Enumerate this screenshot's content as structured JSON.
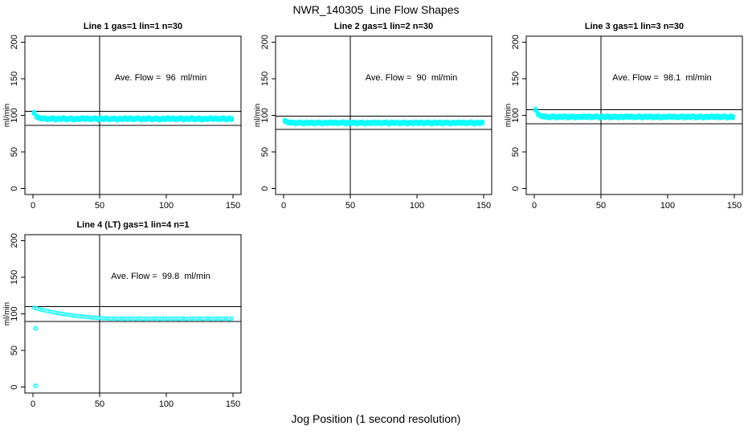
{
  "page": {
    "title": "NWR_140305  Line Flow Shapes",
    "xlabel": "Jog Position (1 second resolution)"
  },
  "colors": {
    "points": "#00FFFF",
    "axis": "#000000",
    "text": "#000000",
    "background": "#FFFFFF"
  },
  "chart_data": [
    {
      "type": "scatter",
      "title": "Line 1 gas=1 lin=1 n=30",
      "annotation": "Ave. Flow =  96  ml/min",
      "ave_flow_ml_min": 96,
      "gas": 1,
      "lin": 1,
      "n": 30,
      "ylabel": "ml/min",
      "xlim": [
        0,
        150
      ],
      "ylim": [
        0,
        200
      ],
      "xticks": [
        0,
        50,
        100,
        150
      ],
      "yticks": [
        0,
        50,
        100,
        150,
        200
      ],
      "vline_x": 50,
      "hlines": [
        105.6,
        86.4
      ],
      "x_start": 1,
      "x_step": 2,
      "y_values": [
        103.4,
        98.0,
        96.4,
        95.8,
        95.9,
        94.7,
        95.4,
        96.1,
        94.4,
        95.6,
        95.0,
        96.2,
        94.6,
        95.3,
        95.8,
        94.3,
        95.5,
        94.8,
        96.0,
        95.1,
        95.9,
        94.7,
        95.4,
        96.1,
        94.4,
        95.6,
        95.0,
        96.2,
        94.6,
        95.3,
        95.8,
        94.3,
        95.5,
        94.8,
        96.0,
        95.1,
        95.9,
        94.7,
        95.4,
        96.1,
        94.4,
        95.6,
        95.0,
        96.2,
        94.6,
        95.3,
        95.8,
        94.3,
        95.5,
        94.8,
        96.0,
        95.1,
        95.9,
        94.7,
        95.4,
        96.1,
        94.4,
        95.6,
        95.0,
        96.2,
        94.6,
        95.3,
        95.8,
        94.3,
        95.5,
        94.8,
        96.0,
        95.1,
        95.9,
        94.7,
        95.4,
        96.1,
        94.4,
        95.6,
        95.0
      ],
      "outliers": []
    },
    {
      "type": "scatter",
      "title": "Line 2 gas=1 lin=2 n=30",
      "annotation": "Ave. Flow =  90  ml/min",
      "ave_flow_ml_min": 90,
      "gas": 1,
      "lin": 2,
      "n": 30,
      "ylabel": "ml/min",
      "xlim": [
        0,
        150
      ],
      "ylim": [
        0,
        200
      ],
      "xticks": [
        0,
        50,
        100,
        150
      ],
      "yticks": [
        0,
        50,
        100,
        150,
        200
      ],
      "vline_x": 50,
      "hlines": [
        99.0,
        81.0
      ],
      "x_start": 1,
      "x_step": 2,
      "y_values": [
        92.5,
        90.8,
        90.0,
        90.3,
        89.2,
        89.9,
        90.5,
        89.0,
        90.1,
        89.5,
        90.4,
        89.1,
        89.8,
        90.2,
        88.9,
        90.0,
        89.4,
        90.4,
        89.6,
        90.3,
        89.2,
        89.9,
        90.5,
        89.0,
        90.1,
        89.5,
        90.4,
        89.1,
        89.8,
        90.2,
        88.9,
        90.0,
        89.4,
        90.4,
        89.6,
        90.3,
        89.2,
        89.9,
        90.5,
        89.0,
        90.1,
        89.5,
        90.4,
        89.1,
        89.8,
        90.2,
        88.9,
        90.0,
        89.4,
        90.4,
        89.6,
        90.3,
        89.2,
        89.9,
        90.5,
        89.0,
        90.1,
        89.5,
        90.4,
        89.1,
        89.8,
        90.2,
        88.9,
        90.0,
        89.4,
        90.4,
        89.6,
        90.3,
        89.2,
        89.9,
        90.5,
        89.0,
        90.1,
        89.5,
        90.4
      ],
      "outliers": []
    },
    {
      "type": "scatter",
      "title": "Line 3 gas=1 lin=3 n=30",
      "annotation": "Ave. Flow =  98.1  ml/min",
      "ave_flow_ml_min": 98.1,
      "gas": 1,
      "lin": 3,
      "n": 30,
      "ylabel": "ml/min",
      "xlim": [
        0,
        150
      ],
      "ylim": [
        0,
        200
      ],
      "xticks": [
        0,
        50,
        100,
        150
      ],
      "yticks": [
        0,
        50,
        100,
        150,
        200
      ],
      "vline_x": 50,
      "hlines": [
        107.9,
        88.3
      ],
      "x_start": 1,
      "x_step": 2,
      "y_values": [
        107.6,
        101.5,
        99.2,
        98.5,
        98.4,
        97.4,
        98.0,
        98.6,
        97.2,
        98.2,
        97.7,
        98.6,
        97.3,
        98.0,
        98.4,
        97.1,
        98.1,
        97.6,
        98.5,
        97.8,
        98.4,
        97.4,
        98.0,
        98.6,
        97.2,
        98.2,
        97.7,
        98.6,
        97.3,
        98.0,
        98.4,
        97.1,
        98.1,
        97.6,
        98.5,
        97.8,
        98.4,
        97.4,
        98.0,
        98.6,
        97.2,
        98.2,
        97.7,
        98.6,
        97.3,
        98.0,
        98.4,
        97.1,
        98.1,
        97.6,
        98.5,
        97.8,
        98.4,
        97.4,
        98.0,
        98.6,
        97.2,
        98.2,
        97.7,
        98.6,
        97.3,
        98.0,
        98.4,
        97.1,
        98.1,
        97.6,
        98.5,
        97.8,
        98.4,
        97.4,
        98.0,
        98.6,
        97.2,
        98.2,
        97.7
      ],
      "outliers": []
    },
    {
      "type": "scatter",
      "title": "Line 4 (LT) gas=1 lin=4 n=1",
      "annotation": "Ave. Flow =  99.8  ml/min",
      "ave_flow_ml_min": 99.8,
      "gas": 1,
      "lin": 4,
      "n": 1,
      "ylabel": "ml/min",
      "xlim": [
        0,
        150
      ],
      "ylim": [
        0,
        200
      ],
      "xticks": [
        0,
        50,
        100,
        150
      ],
      "yticks": [
        0,
        50,
        100,
        150,
        200
      ],
      "vline_x": 50,
      "hlines": [
        109.8,
        89.8
      ],
      "x_start": 1,
      "x_step": 2,
      "y_values": [
        108.3,
        107.4,
        106.3,
        105.6,
        104.5,
        103.9,
        102.9,
        102.4,
        101.5,
        101.0,
        100.2,
        99.8,
        99.0,
        98.7,
        98.0,
        97.7,
        97.1,
        96.9,
        96.3,
        96.1,
        95.6,
        95.4,
        94.9,
        94.9,
        94.4,
        94.3,
        93.9,
        93.9,
        93.5,
        93.5,
        93.7,
        93.2,
        93.5,
        93.8,
        93.1,
        93.6,
        93.3,
        93.8,
        93.2,
        93.5,
        93.7,
        93.0,
        93.6,
        93.3,
        93.7,
        93.4,
        93.7,
        93.2,
        93.5,
        93.8,
        93.1,
        93.6,
        93.3,
        93.8,
        93.2,
        93.5,
        93.7,
        93.0,
        93.6,
        93.3,
        93.7,
        93.4,
        93.7,
        93.2,
        93.5,
        93.8,
        93.1,
        93.6,
        93.3,
        93.8,
        93.2,
        93.5,
        93.7,
        93.0,
        93.6
      ],
      "outliers": [
        [
          2,
          80
        ],
        [
          2,
          2
        ]
      ]
    }
  ]
}
